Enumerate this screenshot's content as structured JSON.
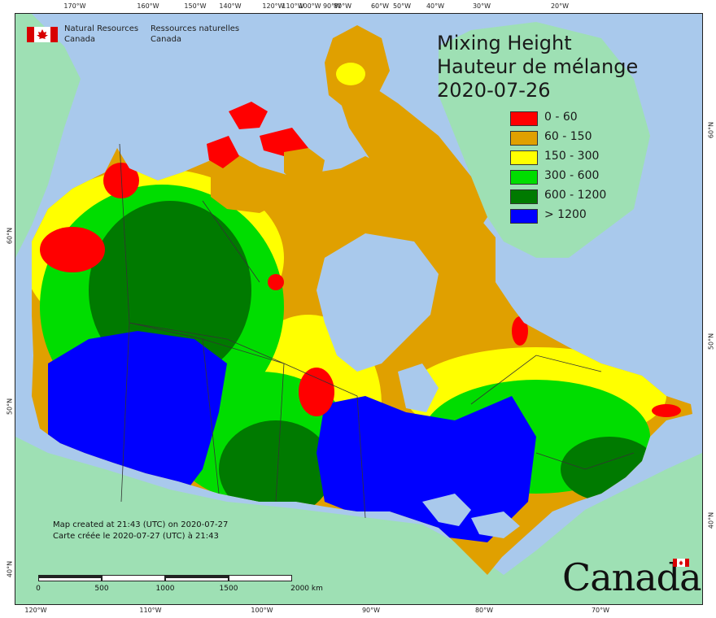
{
  "title": {
    "line1": "Mixing Height",
    "line2": "Hauteur de mélange",
    "date": "2020-07-26"
  },
  "legend": [
    {
      "label": "0 - 60",
      "color": "#ff0000"
    },
    {
      "label": "60 - 150",
      "color": "#e0a000"
    },
    {
      "label": "150 - 300",
      "color": "#ffff00"
    },
    {
      "label": "300 - 600",
      "color": "#00dd00"
    },
    {
      "label": "600 - 1200",
      "color": "#007a00"
    },
    {
      "label": "> 1200",
      "color": "#0000ff"
    }
  ],
  "agency": {
    "en_line1": "Natural Resources",
    "en_line2": "Canada",
    "fr_line1": "Ressources naturelles",
    "fr_line2": "Canada"
  },
  "created": {
    "en": "Map created at 21:43 (UTC) on 2020-07-27",
    "fr": "Carte créée le 2020-07-27 (UTC) à 21:43"
  },
  "scale": {
    "labels": [
      "0",
      "500",
      "1000",
      "1500",
      "2000  km"
    ]
  },
  "wordmark": "Canada",
  "graticule": {
    "top": [
      "170°W",
      "160°W",
      "150°W",
      "140°W",
      "120°W",
      "110°W",
      "100°W",
      "90°W",
      "80°W",
      "60°W",
      "50°W",
      "40°W",
      "30°W",
      "20°W"
    ],
    "bottom": [
      "120°W",
      "110°W",
      "100°W",
      "90°W",
      "80°W",
      "70°W"
    ],
    "left": [
      "60°N",
      "50°N",
      "40°N"
    ],
    "right": [
      "60°N",
      "50°N",
      "40°N"
    ]
  },
  "colors": {
    "ocean": "#a9c9ec",
    "land_outside": "#9ee0b4",
    "greenland": "#9ee0b4",
    "lakes": "#a9c9ec"
  }
}
